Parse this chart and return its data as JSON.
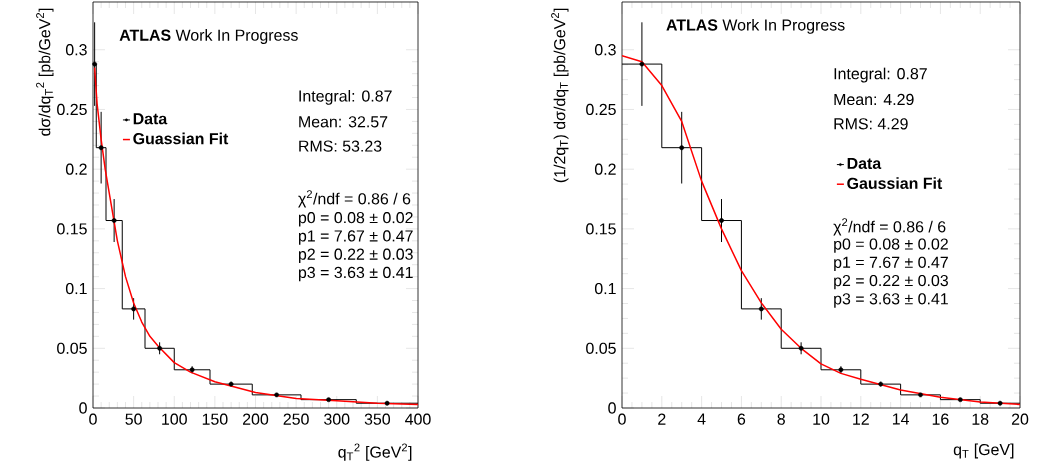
{
  "chart_data": [
    {
      "type": "histogram",
      "xlabel": "q$_{T}$$^{2}$ [GeV$^{2}$]",
      "ylabel": "dσ/dq$_{T}$$^{2}$  [pb/GeV$^{2}$]",
      "xlim": [
        0,
        400
      ],
      "ylim": [
        0,
        0.34
      ],
      "xticks": [
        0,
        50,
        100,
        150,
        200,
        250,
        300,
        350,
        400
      ],
      "yticks": [
        0,
        0.05,
        0.1,
        0.15,
        0.2,
        0.25,
        0.3
      ],
      "legend": "left",
      "annotations": [
        "**ATLAS** Work In Progress",
        "Integral: 0.87",
        "Mean: 32.57",
        "RMS: 53.23",
        "χ$^{2}$/ndf =  0.86 / 6",
        "p0 = 0.08 ± 0.02",
        "p1 = 7.67 ± 0.47",
        "p2 = 0.22 ± 0.03",
        "p3 = 3.63 ± 0.41"
      ],
      "series": [
        {
          "color": "#000000",
          "bins": [
            0,
            4,
            16,
            36,
            64,
            100,
            144,
            196,
            256,
            324,
            400
          ],
          "values": [
            0.288,
            0.218,
            0.157,
            0.083,
            0.05,
            0.032,
            0.02,
            0.011,
            0.007,
            0.004
          ]
        },
        {
          "name": "Data",
          "type": "scatter",
          "color": "#000000",
          "marker": "circle",
          "x": [
            2,
            10,
            26,
            50,
            82,
            122,
            170,
            226,
            290,
            362
          ],
          "values": [
            0.288,
            0.218,
            0.157,
            0.083,
            0.05,
            0.032,
            0.02,
            0.011,
            0.007,
            0.004
          ],
          "errors": [
            0.035,
            0.03,
            0.018,
            0.009,
            0.005,
            0.003,
            0.002,
            null,
            null,
            null
          ]
        },
        {
          "name": "Guassian Fit",
          "type": "line",
          "color": "#ff0000",
          "x": [
            2,
            5,
            10,
            15,
            20,
            25,
            30,
            35,
            40,
            50,
            60,
            70,
            80,
            100,
            120,
            150,
            200,
            250,
            300,
            350,
            400
          ],
          "values": [
            0.285,
            0.255,
            0.225,
            0.2,
            0.18,
            0.16,
            0.14,
            0.125,
            0.11,
            0.088,
            0.072,
            0.06,
            0.052,
            0.038,
            0.03,
            0.022,
            0.013,
            0.008,
            0.006,
            0.004,
            0.003
          ]
        }
      ]
    },
    {
      "type": "histogram",
      "xlabel": "q$_{T}$ [GeV]",
      "ylabel": "(1/2q$_{T}$) dσ/dq$_{T}$  [pb/GeV$^{2}$]",
      "xlim": [
        0,
        20
      ],
      "ylim": [
        0,
        0.34
      ],
      "xticks": [
        0,
        2,
        4,
        6,
        8,
        10,
        12,
        14,
        16,
        18,
        20
      ],
      "yticks": [
        0,
        0.05,
        0.1,
        0.15,
        0.2,
        0.25,
        0.3
      ],
      "legend": "right",
      "annotations": [
        "**ATLAS** Work In Progress",
        "Integral: 0.87",
        "Mean: 4.29",
        "RMS: 4.29",
        "χ$^{2}$/ndf =  0.86 / 6",
        "p0 = 0.08 ± 0.02",
        "p1 = 7.67 ± 0.47",
        "p2 = 0.22 ± 0.03",
        "p3 = 3.63 ± 0.41"
      ],
      "series": [
        {
          "color": "#000000",
          "bins": [
            0,
            2,
            4,
            6,
            8,
            10,
            12,
            14,
            16,
            18,
            20
          ],
          "values": [
            0.288,
            0.218,
            0.157,
            0.083,
            0.05,
            0.032,
            0.02,
            0.011,
            0.007,
            0.004
          ]
        },
        {
          "name": "Data",
          "type": "scatter",
          "color": "#000000",
          "marker": "circle",
          "x": [
            1,
            3,
            5,
            7,
            9,
            11,
            13,
            15,
            17,
            19
          ],
          "values": [
            0.288,
            0.218,
            0.157,
            0.083,
            0.05,
            0.032,
            0.02,
            0.011,
            0.007,
            0.004
          ],
          "errors": [
            0.035,
            0.03,
            0.018,
            0.009,
            0.005,
            0.003,
            0.002,
            null,
            null,
            null
          ]
        },
        {
          "name": "Gaussian Fit",
          "type": "line",
          "color": "#ff0000",
          "x": [
            0,
            1,
            2,
            3,
            4,
            5,
            6,
            7,
            8,
            9,
            10,
            11,
            12,
            14,
            16,
            18,
            20
          ],
          "values": [
            0.295,
            0.29,
            0.27,
            0.24,
            0.19,
            0.15,
            0.115,
            0.088,
            0.066,
            0.05,
            0.037,
            0.029,
            0.024,
            0.015,
            0.009,
            0.005,
            0.003
          ]
        }
      ]
    }
  ]
}
